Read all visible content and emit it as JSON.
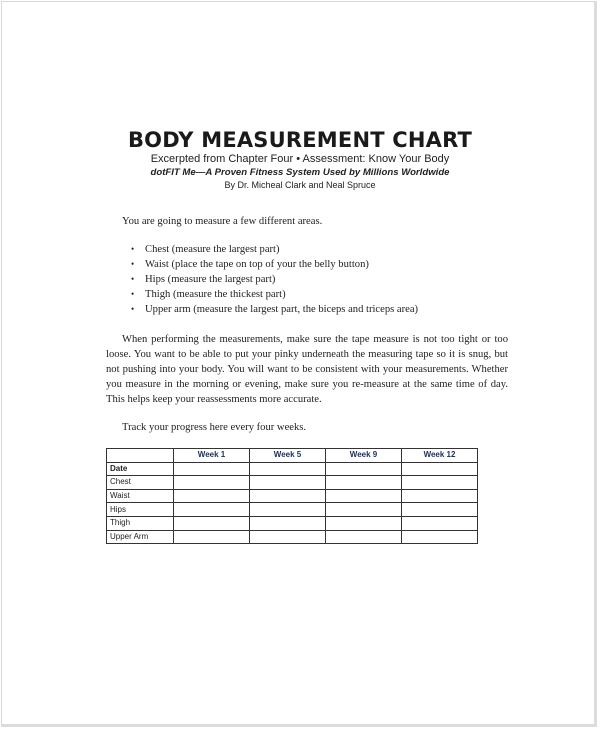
{
  "header": {
    "title": "BODY MEASUREMENT CHART",
    "subtitle": "Excerpted from Chapter Four • Assessment: Know Your Body",
    "tagline": "dotFIT Me—A Proven Fitness System Used by Millions Worldwide",
    "byline": "By Dr. Micheal Clark and Neal Spruce"
  },
  "intro": "You are going to measure a few different areas.",
  "bullets": [
    "Chest (measure the largest part)",
    "Waist (place the tape on top of your the belly button)",
    "Hips (measure the largest part)",
    "Thigh (measure the thickest part)",
    "Upper arm (measure the largest part, the biceps and triceps area)"
  ],
  "paragraph_lines": [
    "When performing the measurements, make sure the tape measure is not too tight or too loose.",
    "You want to be able to put your pinky underneath the measuring tape so it is snug, but not pushing",
    "into your body. You will want to be consistent with your measurements. Whether you measure in",
    "the morning or evening, make sure you re-measure at the same time of day. This helps keep your",
    "reassessments more accurate."
  ],
  "track_text": "Track your progress here every four weeks.",
  "table": {
    "columns": [
      "",
      "Week 1",
      "Week 5",
      "Week 9",
      "Week 12"
    ],
    "rows": [
      "Date",
      "Chest",
      "Waist",
      "Hips",
      "Thigh",
      "Upper Arm"
    ]
  }
}
